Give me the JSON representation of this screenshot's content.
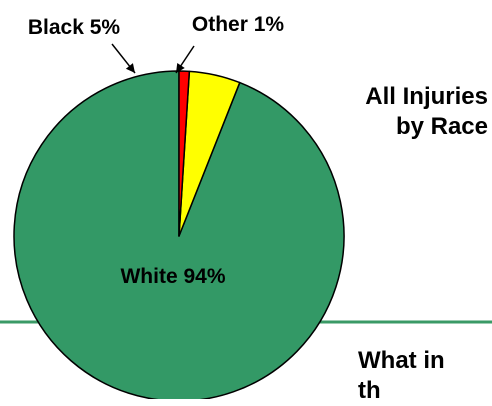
{
  "slide": {
    "title_lines": [
      "All Injuries",
      "by Race"
    ],
    "body_lines": [
      "What in",
      "th"
    ],
    "rule_color": "#3a9a66"
  },
  "chart_data": {
    "type": "pie",
    "title": "All Injuries by Race",
    "start_angle_deg": 0,
    "direction": "clockwise",
    "slices": [
      {
        "label": "White",
        "value": 94,
        "color": "#339966",
        "label_text": "White 94%"
      },
      {
        "label": "Black",
        "value": 5,
        "color": "#ffff00",
        "label_text": "Black 5%"
      },
      {
        "label": "Other",
        "value": 1,
        "color": "#ff0000",
        "label_text": "Other 1%"
      }
    ],
    "legend": "none",
    "data_labels": "category and percentage, leader lines for small slices"
  }
}
